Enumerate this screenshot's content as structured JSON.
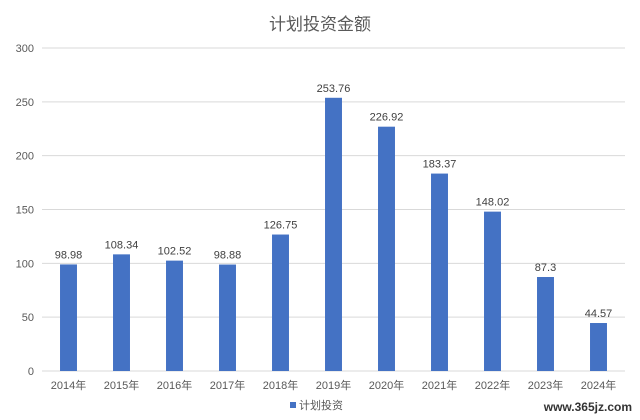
{
  "chart_data": {
    "type": "bar",
    "title": "计划投资金额",
    "categories": [
      "2014年",
      "2015年",
      "2016年",
      "2017年",
      "2018年",
      "2019年",
      "2020年",
      "2021年",
      "2022年",
      "2023年",
      "2024年"
    ],
    "series": [
      {
        "name": "计划投资",
        "values": [
          98.98,
          108.34,
          102.52,
          98.88,
          126.75,
          253.76,
          226.92,
          183.37,
          148.02,
          87.3,
          44.57
        ],
        "labels": [
          "98.98",
          "108.34",
          "102.52",
          "98.88",
          "126.75",
          "253.76",
          "226.92",
          "183.37",
          "148.02",
          "87.3",
          "44.57"
        ],
        "color": "#4472C4"
      }
    ],
    "ylim": [
      0,
      300
    ],
    "yticks": [
      0,
      50,
      100,
      150,
      200,
      250,
      300
    ],
    "grid": true,
    "legend_position": "bottom"
  },
  "colors": {
    "bar": "#4472C4",
    "grid": "#D9D9D9",
    "text": "#595959"
  },
  "watermark": "www.365jz.com"
}
